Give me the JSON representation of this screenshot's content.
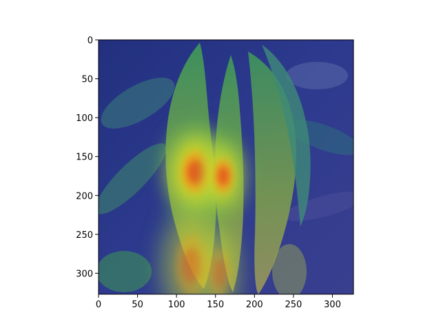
{
  "chart_data": {
    "type": "heatmap",
    "title": "",
    "xlabel": "",
    "ylabel": "",
    "xlim": [
      0,
      327
    ],
    "ylim": [
      327,
      0
    ],
    "x_ticks": [
      0,
      50,
      100,
      150,
      200,
      250,
      300
    ],
    "y_ticks": [
      0,
      50,
      100,
      150,
      200,
      250,
      300
    ],
    "colormap": "jet",
    "overlay": "attention heatmap over photo of plant leaves",
    "hotspots": [
      {
        "x": 125,
        "y": 170,
        "sx": 26,
        "sy": 38,
        "intensity": 1.0
      },
      {
        "x": 160,
        "y": 175,
        "sx": 18,
        "sy": 32,
        "intensity": 0.85
      },
      {
        "x": 120,
        "y": 290,
        "sx": 30,
        "sy": 55,
        "intensity": 0.45
      },
      {
        "x": 155,
        "y": 300,
        "sx": 20,
        "sy": 45,
        "intensity": 0.35
      }
    ],
    "grid": false,
    "legend": "none"
  },
  "colors": {
    "background_dark": "#1e2a78",
    "leaf_green": "#6f9a3a",
    "hot_red": "#e8401c",
    "hot_yellow": "#f2e21c",
    "axis": "#000000"
  }
}
